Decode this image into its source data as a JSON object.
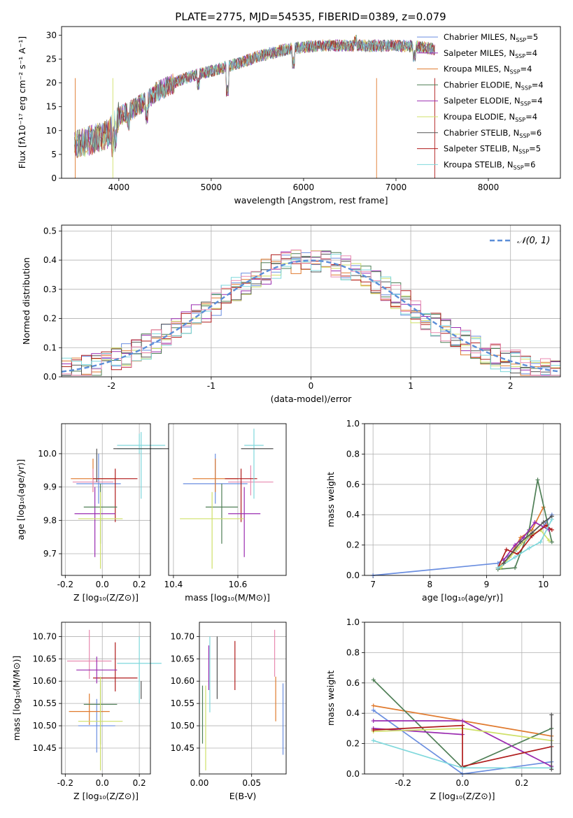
{
  "title": "PLATE=2775, MJD=54535, FIBERID=0389, z=0.079",
  "colors": {
    "Chabrier MILES": "#6a8ee0",
    "Salpeter MILES": "#9a2bb0",
    "Kroupa MILES": "#e07a2e",
    "Chabrier ELODIE": "#4f7f56",
    "Salpeter ELODIE": "#9a2bb0",
    "Kroupa ELODIE": "#cfe068",
    "Chabrier STELIB": "#555555",
    "Salpeter STELIB": "#b01c1c",
    "Kroupa STELIB": "#7fd8dc",
    "Pink": "#e88ab0",
    "Normal": "#5b8ed8"
  },
  "chart_data": [
    {
      "id": "spectrum",
      "type": "line",
      "title": "PLATE=2775, MJD=54535, FIBERID=0389, z=0.079",
      "xlabel": "wavelength [Angstrom, rest frame]",
      "ylabel": "Flux [fλ10⁻¹⁷ erg cm⁻² s⁻¹ A⁻¹]",
      "xlim": [
        3380,
        8780
      ],
      "ylim": [
        0,
        31.8
      ],
      "xticks": [
        4000,
        5000,
        6000,
        7000,
        8000
      ],
      "yticks": [
        0,
        5,
        10,
        15,
        20,
        25,
        30
      ],
      "legend_position": "top-right",
      "series": [
        {
          "name": "Chabrier MILES, N",
          "sub": "SSP",
          "tail": "=5",
          "color": "#6a8ee0"
        },
        {
          "name": "Salpeter MILES, N",
          "sub": "SSP",
          "tail": "=4",
          "color": "#9a2bb0"
        },
        {
          "name": "Kroupa MILES, N",
          "sub": "SSP",
          "tail": "=4",
          "color": "#e07a2e"
        },
        {
          "name": "Chabrier ELODIE, N",
          "sub": "SSP",
          "tail": "=4",
          "color": "#4f7f56"
        },
        {
          "name": "Salpeter ELODIE, N",
          "sub": "SSP",
          "tail": "=4",
          "color": "#9a2bb0"
        },
        {
          "name": "Kroupa ELODIE, N",
          "sub": "SSP",
          "tail": "=4",
          "color": "#cfe068"
        },
        {
          "name": "Chabrier STELIB, N",
          "sub": "SSP",
          "tail": "=6",
          "color": "#555555"
        },
        {
          "name": "Salpeter STELIB, N",
          "sub": "SSP",
          "tail": "=5",
          "color": "#b01c1c"
        },
        {
          "name": "Kroupa STELIB, N",
          "sub": "SSP",
          "tail": "=6",
          "color": "#7fd8dc"
        }
      ],
      "continuum": [
        [
          3520,
          7
        ],
        [
          3700,
          8
        ],
        [
          3900,
          9.5
        ],
        [
          4000,
          13
        ],
        [
          4200,
          15
        ],
        [
          4400,
          18
        ],
        [
          4600,
          20
        ],
        [
          4800,
          21.5
        ],
        [
          5000,
          22.5
        ],
        [
          5200,
          23.5
        ],
        [
          5500,
          25.5
        ],
        [
          5800,
          27
        ],
        [
          6000,
          27.5
        ],
        [
          6200,
          27.8
        ],
        [
          6500,
          27.8
        ],
        [
          6800,
          27.8
        ],
        [
          7000,
          27.8
        ],
        [
          7200,
          27.6
        ],
        [
          7300,
          27.5
        ],
        [
          7420,
          27
        ]
      ],
      "dips": [
        [
          3934,
          -3
        ],
        [
          3968,
          -3
        ],
        [
          4102,
          -2
        ],
        [
          4300,
          -3
        ],
        [
          4861,
          -2
        ],
        [
          5175,
          -5
        ],
        [
          5890,
          -3
        ],
        [
          6563,
          1
        ],
        [
          7200,
          -2
        ]
      ]
    },
    {
      "id": "residuals",
      "type": "histogram",
      "xlabel": "(data-model)/error",
      "ylabel": "Normed distribution",
      "xlim": [
        -2.5,
        2.5
      ],
      "ylim": [
        0,
        0.52
      ],
      "xticks": [
        -2,
        -1,
        0,
        1,
        2
      ],
      "yticks": [
        0.0,
        0.1,
        0.2,
        0.3,
        0.4,
        0.5
      ],
      "legend": "𝒩(0, 1)",
      "bin_edges_from": -2.5,
      "bin_width": 0.1,
      "series_colors": [
        "#6a8ee0",
        "#9a2bb0",
        "#e07a2e",
        "#4f7f56",
        "#cfe068",
        "#555555",
        "#b01c1c",
        "#7fd8dc",
        "#e88ab0"
      ]
    },
    {
      "id": "age-vs-Z",
      "type": "scatter",
      "xlabel": "Z [log₁₀(Z/Z⊙)]",
      "ylabel": "age  [log₁₀(age/yr)]",
      "xlim": [
        -0.22,
        0.26
      ],
      "ylim": [
        9.635,
        10.09
      ],
      "xticks": [
        -0.2,
        0.0,
        0.2
      ],
      "yticks": [
        9.7,
        9.8,
        9.9,
        10.0
      ],
      "points": [
        {
          "x": -0.02,
          "y": 9.91,
          "ex": 0.12,
          "ey1": 0.06,
          "ey2": 0.09,
          "c": "#6a8ee0"
        },
        {
          "x": -0.05,
          "y": 9.925,
          "ex": 0.12,
          "ey1": 0.04,
          "ey2": 0.06,
          "c": "#e07a2e"
        },
        {
          "x": -0.05,
          "y": 9.915,
          "ex": 0.11,
          "ey1": 0.03,
          "ey2": 0.04,
          "c": "#e88ab0"
        },
        {
          "x": 0.07,
          "y": 9.925,
          "ex": 0.12,
          "ey1": 0.13,
          "ey2": 0.03,
          "c": "#b01c1c"
        },
        {
          "x": -0.04,
          "y": 9.82,
          "ex": 0.11,
          "ey1": 0.13,
          "ey2": 0.08,
          "c": "#9a2bb0"
        },
        {
          "x": -0.01,
          "y": 9.84,
          "ex": 0.09,
          "ey1": 0.11,
          "ey2": 0.07,
          "c": "#4f7f56"
        },
        {
          "x": -0.01,
          "y": 9.805,
          "ex": 0.12,
          "ey1": 0.15,
          "ey2": 0.08,
          "c": "#cfe068"
        },
        {
          "x": 0.2,
          "y": 10.015,
          "ex": 0.12,
          "ey1": 0.015,
          "ey2": 0.045,
          "c": "#7fd8dc"
        },
        {
          "x": 0.21,
          "y": 10.025,
          "ex": 0.13,
          "ey1": 0.16,
          "ey2": 0.04,
          "c": "#7fd8dc"
        },
        {
          "x": 0.21,
          "y": 10.015,
          "ex": 0.15,
          "ey1": 0.0,
          "ey2": 0.0,
          "c": "#555555"
        },
        {
          "x": -0.03,
          "y": 10.015,
          "ex": 0.0,
          "ey1": 0.1,
          "ey2": 0.0,
          "c": "#555555"
        }
      ]
    },
    {
      "id": "age-vs-mass",
      "type": "scatter",
      "xlabel": "mass [log₁₀(M/M⊙)]",
      "ylabel": "",
      "xlim": [
        10.385,
        10.75
      ],
      "ylim": [
        9.635,
        10.09
      ],
      "xticks": [
        10.4,
        10.6
      ],
      "points": [
        {
          "x": 10.53,
          "y": 9.91,
          "ex": 0.1,
          "ey1": 0.06,
          "ey2": 0.09,
          "c": "#6a8ee0"
        },
        {
          "x": 10.53,
          "y": 9.925,
          "ex": 0.07,
          "ey1": 0.04,
          "ey2": 0.06,
          "c": "#e07a2e"
        },
        {
          "x": 10.64,
          "y": 9.915,
          "ex": 0.07,
          "ey1": 0.04,
          "ey2": 0.05,
          "c": "#e88ab0"
        },
        {
          "x": 10.61,
          "y": 9.925,
          "ex": 0.05,
          "ey1": 0.13,
          "ey2": 0.03,
          "c": "#b01c1c"
        },
        {
          "x": 10.62,
          "y": 9.82,
          "ex": 0.05,
          "ey1": 0.13,
          "ey2": 0.08,
          "c": "#9a2bb0"
        },
        {
          "x": 10.55,
          "y": 9.84,
          "ex": 0.05,
          "ey1": 0.11,
          "ey2": 0.07,
          "c": "#4f7f56"
        },
        {
          "x": 10.52,
          "y": 9.805,
          "ex": 0.1,
          "ey1": 0.15,
          "ey2": 0.08,
          "c": "#cfe068"
        },
        {
          "x": 10.65,
          "y": 10.025,
          "ex": 0.03,
          "ey1": 0.16,
          "ey2": 0.05,
          "c": "#7fd8dc"
        },
        {
          "x": 10.66,
          "y": 10.015,
          "ex": 0.05,
          "ey1": 0.0,
          "ey2": 0.0,
          "c": "#555555"
        }
      ]
    },
    {
      "id": "weight-vs-age",
      "type": "line",
      "xlabel": "age  [log₁₀(age/yr)]",
      "ylabel": "mass weight",
      "xlim": [
        6.85,
        10.3
      ],
      "ylim": [
        0,
        1.0
      ],
      "xticks": [
        7,
        8,
        9,
        10
      ],
      "yticks": [
        0.0,
        0.2,
        0.4,
        0.6,
        0.8,
        1.0
      ],
      "series": [
        {
          "c": "#6a8ee0",
          "x": [
            7.0,
            9.2,
            9.5,
            9.7,
            9.95,
            10.15
          ],
          "y": [
            0.0,
            0.08,
            0.16,
            0.24,
            0.3,
            0.4
          ]
        },
        {
          "c": "#e07a2e",
          "x": [
            9.2,
            9.4,
            9.6,
            9.8,
            10.0
          ],
          "y": [
            0.05,
            0.12,
            0.25,
            0.3,
            0.45
          ]
        },
        {
          "c": "#4f7f56",
          "x": [
            9.2,
            9.5,
            9.75,
            9.9,
            10.15
          ],
          "y": [
            0.04,
            0.05,
            0.3,
            0.63,
            0.22
          ]
        },
        {
          "c": "#9a2bb0",
          "x": [
            9.3,
            9.5,
            9.65,
            9.85,
            10.1
          ],
          "y": [
            0.1,
            0.2,
            0.25,
            0.35,
            0.3
          ]
        },
        {
          "c": "#cfe068",
          "x": [
            9.25,
            9.55,
            9.75,
            9.95,
            10.1
          ],
          "y": [
            0.05,
            0.18,
            0.26,
            0.3,
            0.23
          ]
        },
        {
          "c": "#b01c1c",
          "x": [
            9.2,
            9.35,
            9.55,
            9.8,
            10.05,
            10.15
          ],
          "y": [
            0.05,
            0.17,
            0.14,
            0.26,
            0.33,
            0.3
          ]
        },
        {
          "c": "#7fd8dc",
          "x": [
            9.2,
            9.5,
            9.75,
            9.95,
            10.15
          ],
          "y": [
            0.05,
            0.12,
            0.18,
            0.22,
            0.37
          ]
        },
        {
          "c": "#555555",
          "x": [
            9.3,
            9.6,
            9.8,
            10.0,
            10.15
          ],
          "y": [
            0.08,
            0.22,
            0.28,
            0.35,
            0.39
          ]
        }
      ]
    },
    {
      "id": "mass-vs-Z",
      "type": "scatter",
      "xlabel": "Z [log₁₀(Z/Z⊙)]",
      "ylabel": "mass [log₁₀(M/M⊙)]",
      "xlim": [
        -0.22,
        0.26
      ],
      "ylim": [
        10.392,
        10.732
      ],
      "xticks": [
        -0.2,
        0.0,
        0.2
      ],
      "yticks": [
        10.45,
        10.5,
        10.55,
        10.6,
        10.65,
        10.7
      ],
      "points": [
        {
          "x": -0.03,
          "y": 10.5,
          "ex": 0.1,
          "ey1": 0.06,
          "ey2": 0.06,
          "c": "#6a8ee0"
        },
        {
          "x": -0.07,
          "y": 10.532,
          "ex": 0.11,
          "ey1": 0.03,
          "ey2": 0.04,
          "c": "#e07a2e"
        },
        {
          "x": -0.07,
          "y": 10.645,
          "ex": 0.12,
          "ey1": 0.04,
          "ey2": 0.07,
          "c": "#e88ab0"
        },
        {
          "x": 0.07,
          "y": 10.607,
          "ex": 0.12,
          "ey1": 0.03,
          "ey2": 0.08,
          "c": "#b01c1c"
        },
        {
          "x": -0.03,
          "y": 10.625,
          "ex": 0.11,
          "ey1": 0.03,
          "ey2": 0.03,
          "c": "#9a2bb0"
        },
        {
          "x": -0.01,
          "y": 10.548,
          "ex": 0.09,
          "ey1": 0.09,
          "ey2": 0.05,
          "c": "#4f7f56"
        },
        {
          "x": -0.01,
          "y": 10.51,
          "ex": 0.12,
          "ey1": 0.11,
          "ey2": 0.1,
          "c": "#cfe068"
        },
        {
          "x": 0.2,
          "y": 10.64,
          "ex": 0.12,
          "ey1": 0.09,
          "ey2": 0.06,
          "c": "#7fd8dc"
        },
        {
          "x": 0.21,
          "y": 10.58,
          "ex": 0.0,
          "ey1": 0.02,
          "ey2": 0.02,
          "c": "#555555"
        }
      ]
    },
    {
      "id": "mass-vs-EBV",
      "type": "scatter",
      "xlabel": "E(B-V)",
      "ylabel": "",
      "xlim": [
        0.0,
        0.083
      ],
      "ylim": [
        10.392,
        10.732
      ],
      "xticks": [
        0.0,
        0.05
      ],
      "yticks": [
        10.45,
        10.5,
        10.55,
        10.6,
        10.65,
        10.7
      ],
      "points": [
        {
          "x": 0.08,
          "y": 10.515,
          "ey1": 0.08,
          "ey2": 0.08,
          "c": "#6a8ee0"
        },
        {
          "x": 0.073,
          "y": 10.56,
          "ey1": 0.05,
          "ey2": 0.05,
          "c": "#e07a2e"
        },
        {
          "x": 0.072,
          "y": 10.655,
          "ey1": 0.045,
          "ey2": 0.06,
          "c": "#e88ab0"
        },
        {
          "x": 0.034,
          "y": 10.635,
          "ey1": 0.055,
          "ey2": 0.055,
          "c": "#b01c1c"
        },
        {
          "x": 0.009,
          "y": 10.63,
          "ey1": 0.05,
          "ey2": 0.05,
          "c": "#9a2bb0"
        },
        {
          "x": 0.003,
          "y": 10.525,
          "ey1": 0.065,
          "ey2": 0.065,
          "c": "#4f7f56"
        },
        {
          "x": 0.006,
          "y": 10.49,
          "ey1": 0.09,
          "ey2": 0.1,
          "c": "#cfe068"
        },
        {
          "x": 0.01,
          "y": 10.62,
          "ey1": 0.09,
          "ey2": 0.08,
          "c": "#7fd8dc"
        },
        {
          "x": 0.017,
          "y": 10.63,
          "ey1": 0.07,
          "ey2": 0.07,
          "c": "#555555"
        }
      ]
    },
    {
      "id": "weight-vs-Z",
      "type": "line",
      "xlabel": "Z [log₁₀(Z/Z⊙)]",
      "ylabel": "mass weight",
      "xlim": [
        -0.33,
        0.33
      ],
      "ylim": [
        0,
        1.0
      ],
      "xticks": [
        -0.2,
        0.0,
        0.2
      ],
      "yticks": [
        0.0,
        0.2,
        0.4,
        0.6,
        0.8,
        1.0
      ],
      "series": [
        {
          "c": "#6a8ee0",
          "x": [
            -0.3,
            0.0,
            0.3
          ],
          "y": [
            0.42,
            0.0,
            0.08
          ]
        },
        {
          "c": "#e07a2e",
          "x": [
            -0.3,
            0.0,
            0.3
          ],
          "y": [
            0.45,
            0.35,
            0.25
          ]
        },
        {
          "c": "#4f7f56",
          "x": [
            -0.3,
            0.0,
            0.3
          ],
          "y": [
            0.62,
            0.04,
            0.3
          ]
        },
        {
          "c": "#9a2bb0",
          "x": [
            -0.3,
            0.0,
            0.3
          ],
          "y": [
            0.35,
            0.35,
            0.05
          ]
        },
        {
          "c": "#9a2bb0",
          "x": [
            -0.3,
            0.0
          ],
          "y": [
            0.3,
            0.26
          ]
        },
        {
          "c": "#cfe068",
          "x": [
            -0.3,
            0.0,
            0.3
          ],
          "y": [
            0.28,
            0.3,
            0.22
          ]
        },
        {
          "c": "#b01c1c",
          "x": [
            -0.3,
            0.0,
            0.0,
            0.3
          ],
          "y": [
            0.29,
            0.32,
            0.05,
            0.18
          ]
        },
        {
          "c": "#7fd8dc",
          "x": [
            -0.3,
            0.0,
            0.3
          ],
          "y": [
            0.22,
            0.04,
            0.04
          ]
        },
        {
          "c": "#555555",
          "x": [
            0.3,
            0.3
          ],
          "y": [
            0.03,
            0.39
          ]
        }
      ]
    }
  ]
}
